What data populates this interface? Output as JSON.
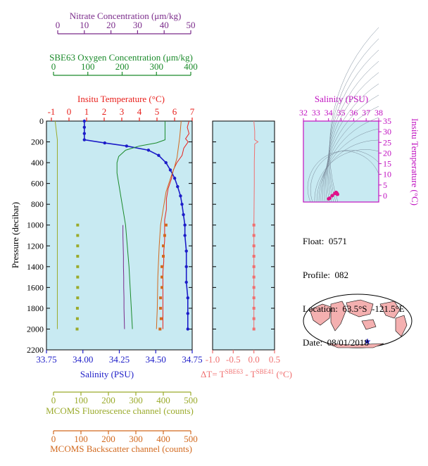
{
  "colors": {
    "plot_bg": "#c8eaf2",
    "temperature": "#e8201c",
    "salinity": "#1c1cc8",
    "oxygen": "#1a8a2a",
    "nitrate": "#7a2a8a",
    "fluorescence": "#9aaa2a",
    "backscatter": "#d2691e",
    "delta_t": "#f07070",
    "ts_frame": "#c010c0",
    "ts_points": "#e0108a",
    "land": "#f4b0b0",
    "marker": "#1a1ad0"
  },
  "axes": {
    "nitrate": {
      "label": "Nitrate Concentration (μm/kg)",
      "ticks": [
        "0",
        "10",
        "20",
        "30",
        "40",
        "50"
      ],
      "range": [
        0,
        50
      ]
    },
    "oxygen": {
      "label": "SBE63 Oxygen Concentration (μm/kg)",
      "ticks": [
        "0",
        "100",
        "200",
        "300",
        "400"
      ],
      "range": [
        0,
        400
      ]
    },
    "temperature": {
      "label": "Insitu Temperature (°C)",
      "ticks": [
        "-1",
        "0",
        "1",
        "2",
        "3",
        "4",
        "5",
        "6",
        "7"
      ],
      "range": [
        -1,
        7
      ]
    },
    "pressure": {
      "label": "Pressure (decibar)",
      "ticks": [
        "0",
        "200",
        "400",
        "600",
        "800",
        "1000",
        "1200",
        "1400",
        "1600",
        "1800",
        "2000",
        "2200"
      ],
      "range": [
        0,
        2200
      ]
    },
    "salinity": {
      "label": "Salinity (PSU)",
      "ticks": [
        "33.75",
        "34.00",
        "34.25",
        "34.50",
        "34.75"
      ],
      "range": [
        33.75,
        34.75
      ]
    },
    "delta_t": {
      "label_prefix": "ΔT= T",
      "sup1": "SBE63",
      "mid": " - T",
      "sup2": "SBE41",
      "suffix": " (°C)",
      "ticks": [
        "-1.0",
        "-0.5",
        "0.0",
        "0.5"
      ],
      "range": [
        -1.0,
        0.5
      ]
    },
    "fluorescence": {
      "label": "MCOMS Fluorescence channel (counts)",
      "ticks": [
        "0",
        "100",
        "200",
        "300",
        "400",
        "500"
      ],
      "range": [
        0,
        500
      ]
    },
    "backscatter": {
      "label": "MCOMS Backscatter channel (counts)",
      "ticks": [
        "0",
        "100",
        "200",
        "300",
        "400",
        "500"
      ],
      "range": [
        0,
        500
      ]
    },
    "ts_salinity": {
      "label": "Salinity (PSU)",
      "ticks": [
        "32",
        "33",
        "34",
        "35",
        "36",
        "37",
        "38"
      ],
      "range": [
        32,
        38
      ]
    },
    "ts_temperature": {
      "label": "Insitu Temperature (°C)",
      "ticks": [
        "0",
        "5",
        "10",
        "15",
        "20",
        "25",
        "30",
        "35"
      ],
      "range": [
        -3,
        35
      ]
    }
  },
  "info": {
    "float": "Float:  0571",
    "profile": "Profile:  082",
    "location": "Location:  63.5°S  -121.5°E",
    "date": "Date:  08/01/2018"
  },
  "chart_data": {
    "type": "line",
    "y_axis": "pressure",
    "series": [
      {
        "name": "Insitu Temperature",
        "axis": "temperature",
        "x": [
          6.9,
          6.8,
          6.9,
          6.7,
          6.85,
          6.6,
          6.5,
          6.2,
          6.0,
          5.9,
          5.7,
          5.6,
          5.6,
          5.5,
          5.5,
          5.5,
          5.45,
          5.45,
          5.4,
          5.4,
          5.4,
          5.4,
          5.4
        ],
        "y": [
          0,
          60,
          120,
          170,
          200,
          260,
          330,
          400,
          470,
          550,
          650,
          750,
          850,
          950,
          1050,
          1150,
          1250,
          1350,
          1450,
          1550,
          1650,
          1800,
          2000
        ]
      },
      {
        "name": "Salinity",
        "axis": "salinity",
        "x": [
          34.01,
          34.01,
          34.01,
          34.01,
          34.15,
          34.3,
          34.45,
          34.52,
          34.57,
          34.6,
          34.63,
          34.65,
          34.67,
          34.68,
          34.69,
          34.7,
          34.7,
          34.71,
          34.71,
          34.71,
          34.72,
          34.72,
          34.72
        ],
        "y": [
          0,
          60,
          120,
          180,
          210,
          240,
          280,
          330,
          400,
          470,
          550,
          630,
          720,
          800,
          900,
          1000,
          1100,
          1250,
          1400,
          1550,
          1700,
          1850,
          2000
        ]
      },
      {
        "name": "SBE63 Oxygen",
        "axis": "oxygen",
        "x": [
          325,
          325,
          325,
          300,
          250,
          210,
          190,
          185,
          185,
          190,
          195,
          200,
          205,
          210,
          215,
          220,
          225,
          230
        ],
        "y": [
          0,
          100,
          180,
          210,
          240,
          280,
          340,
          400,
          500,
          600,
          700,
          800,
          900,
          1000,
          1200,
          1400,
          1700,
          2000
        ]
      },
      {
        "name": "Nitrate",
        "axis": "nitrate",
        "x": [
          24.5,
          24.5,
          24.6,
          24.7,
          24.7,
          24.8,
          24.8,
          24.9,
          24.9,
          25.0,
          25.1
        ],
        "y": [
          1000,
          1100,
          1200,
          1300,
          1400,
          1500,
          1600,
          1700,
          1800,
          1900,
          2000
        ]
      },
      {
        "name": "Fluorescence",
        "axis": "fluorescence",
        "x": [
          6,
          14,
          14,
          14,
          14,
          14,
          14,
          14,
          14,
          14,
          14,
          14,
          14,
          14
        ],
        "y": [
          0,
          180,
          220,
          300,
          400,
          500,
          600,
          700,
          800,
          900,
          1000,
          1400,
          1800,
          2000
        ]
      },
      {
        "name": "Fluorescence samples",
        "axis": "fluorescence",
        "markers": true,
        "x": [
          88,
          88,
          88,
          88,
          88,
          88,
          88,
          88,
          87,
          87,
          86
        ],
        "y": [
          1000,
          1100,
          1200,
          1300,
          1400,
          1500,
          1600,
          1700,
          1800,
          1900,
          2000
        ]
      },
      {
        "name": "Backscatter",
        "axis": "backscatter",
        "x": [
          465,
          460,
          455,
          450,
          440,
          430,
          420,
          410,
          405,
          400,
          395,
          390,
          385,
          380,
          378,
          375
        ],
        "y": [
          0,
          150,
          250,
          350,
          450,
          520,
          600,
          680,
          760,
          840,
          920,
          1000,
          1200,
          1500,
          1800,
          2000
        ]
      },
      {
        "name": "Backscatter samples",
        "axis": "backscatter",
        "markers": true,
        "x": [
          410,
          405,
          400,
          400,
          395,
          395,
          395,
          390,
          390,
          392,
          388
        ],
        "y": [
          1000,
          1100,
          1200,
          1300,
          1400,
          1500,
          1600,
          1700,
          1800,
          1900,
          2000
        ]
      },
      {
        "name": "Delta T",
        "axis": "delta_t",
        "x": [
          0.0,
          0.02,
          0.02,
          0.1,
          0.02,
          0.01,
          0.01,
          0.0,
          0.0,
          0.0,
          0.0
        ],
        "y": [
          0,
          100,
          180,
          200,
          220,
          400,
          600,
          1000,
          1400,
          1800,
          2000
        ]
      },
      {
        "name": "Delta T samples",
        "axis": "delta_t",
        "markers": true,
        "x": [
          0.0,
          0.0,
          0.0,
          0.0,
          0.0,
          0.0,
          0.0,
          0.0,
          0.0,
          0.0,
          0.0
        ],
        "y": [
          1000,
          1100,
          1200,
          1300,
          1400,
          1500,
          1600,
          1700,
          1800,
          1900,
          2000
        ]
      }
    ],
    "ts_diagram": {
      "salinity": [
        34.01,
        34.1,
        34.3,
        34.5,
        34.6,
        34.65,
        34.7,
        34.72
      ],
      "temperature": [
        -1.5,
        -1.2,
        0.0,
        1.0,
        1.5,
        1.3,
        0.8,
        0.6
      ]
    },
    "map_float_position": {
      "lat": -63.5,
      "lon": -121.5
    }
  }
}
